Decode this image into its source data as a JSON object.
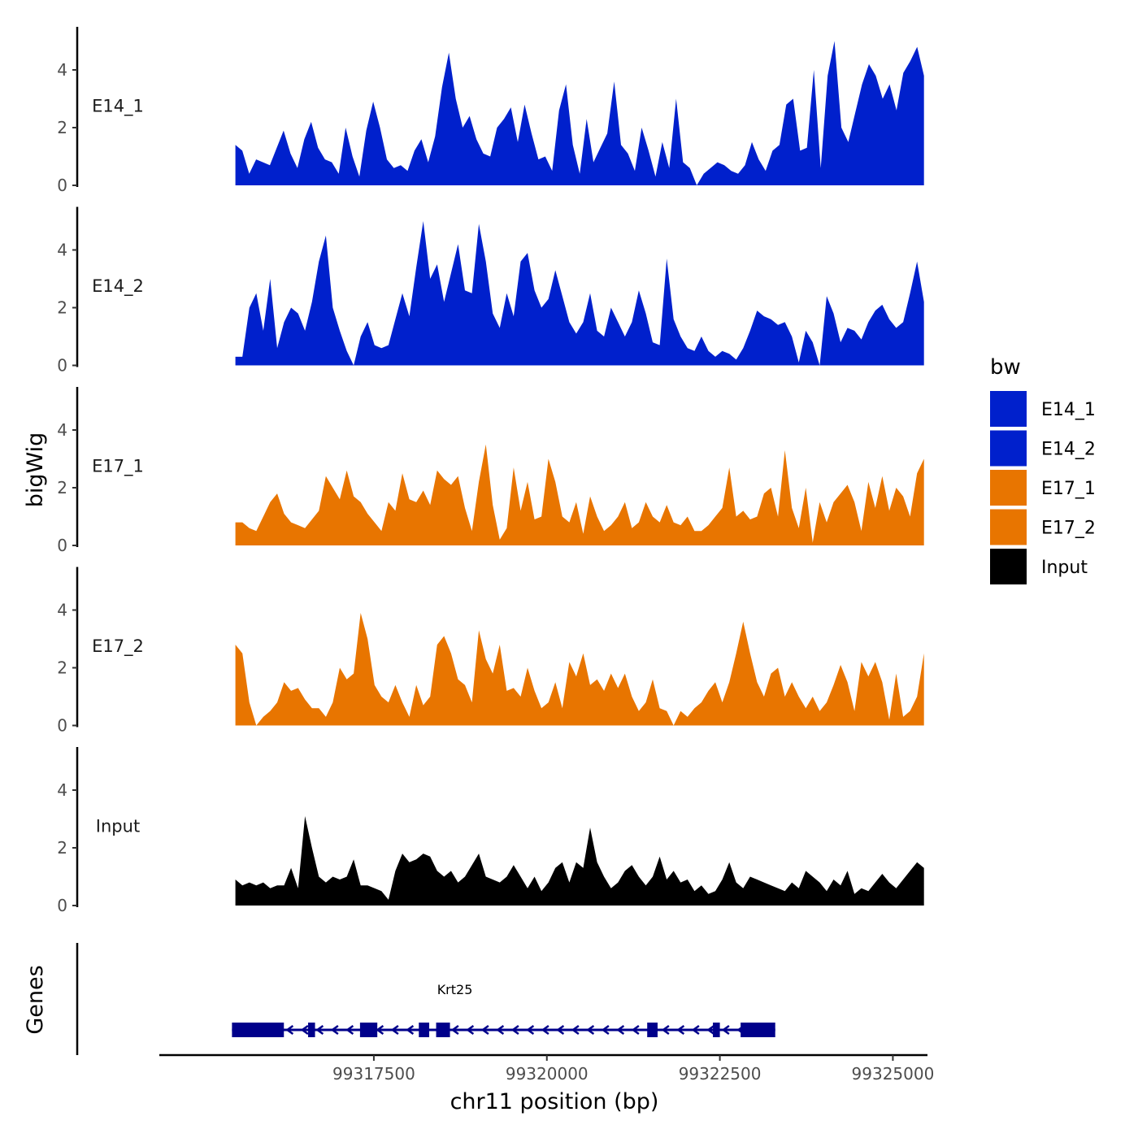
{
  "chart_data": {
    "type": "area",
    "ylabel": "bigWig",
    "xlabel": "chr11 position (bp)",
    "xlim": [
      99314400,
      99325500
    ],
    "ylim": [
      0,
      5.5
    ],
    "y_ticks": [
      0,
      2,
      4
    ],
    "y_tick_labels": [
      "0",
      "2",
      "4"
    ],
    "x_ticks": [
      99317500,
      99320000,
      99322500,
      99325000
    ],
    "x_tick_labels": [
      "99317500",
      "99320000",
      "99322500",
      "99325000"
    ],
    "genes_track_label": "Genes",
    "legend": {
      "title": "bw",
      "position": "right",
      "entries": [
        {
          "label": "E14_1",
          "color": "#0020CC"
        },
        {
          "label": "E14_2",
          "color": "#0020CC"
        },
        {
          "label": "E17_1",
          "color": "#E87500"
        },
        {
          "label": "E17_2",
          "color": "#E87500"
        },
        {
          "label": "Input",
          "color": "#000000"
        }
      ]
    },
    "tracks": [
      {
        "name": "E14_1",
        "color": "#0020CC",
        "x_start": 99315500,
        "x_end": 99325450,
        "values": [
          1.4,
          1.2,
          0.4,
          0.9,
          0.8,
          0.7,
          1.3,
          1.9,
          1.1,
          0.6,
          1.6,
          2.2,
          1.3,
          0.9,
          0.8,
          0.4,
          2.0,
          1.0,
          0.3,
          1.9,
          2.9,
          2.0,
          0.9,
          0.6,
          0.7,
          0.5,
          1.2,
          1.6,
          0.8,
          1.7,
          3.4,
          4.6,
          3.0,
          2.0,
          2.4,
          1.6,
          1.1,
          1.0,
          2.0,
          2.3,
          2.7,
          1.5,
          2.8,
          1.8,
          0.9,
          1.0,
          0.5,
          2.6,
          3.5,
          1.4,
          0.4,
          2.3,
          0.8,
          1.3,
          1.8,
          3.6,
          1.4,
          1.1,
          0.5,
          2.0,
          1.2,
          0.3,
          1.5,
          0.6,
          3.0,
          0.8,
          0.6,
          0.0,
          0.4,
          0.6,
          0.8,
          0.7,
          0.5,
          0.4,
          0.7,
          1.5,
          0.9,
          0.5,
          1.2,
          1.4,
          2.8,
          3.0,
          1.2,
          1.3,
          4.0,
          0.6,
          3.8,
          5.0,
          2.0,
          1.5,
          2.5,
          3.5,
          4.2,
          3.8,
          3.0,
          3.5,
          2.6,
          3.9,
          4.3,
          4.8,
          3.8
        ]
      },
      {
        "name": "E14_2",
        "color": "#0020CC",
        "x_start": 99315500,
        "x_end": 99325450,
        "values": [
          0.3,
          0.3,
          2.0,
          2.5,
          1.2,
          3.0,
          0.6,
          1.5,
          2.0,
          1.8,
          1.2,
          2.2,
          3.6,
          4.5,
          2.0,
          1.2,
          0.5,
          0.0,
          1.0,
          1.5,
          0.7,
          0.6,
          0.7,
          1.6,
          2.5,
          1.7,
          3.4,
          5.0,
          3.0,
          3.5,
          2.2,
          3.2,
          4.2,
          2.6,
          2.5,
          4.9,
          3.6,
          1.8,
          1.3,
          2.5,
          1.7,
          3.6,
          3.9,
          2.6,
          2.0,
          2.3,
          3.3,
          2.4,
          1.5,
          1.1,
          1.5,
          2.5,
          1.2,
          1.0,
          2.0,
          1.5,
          1.0,
          1.5,
          2.6,
          1.8,
          0.8,
          0.7,
          3.7,
          1.6,
          1.0,
          0.6,
          0.5,
          1.0,
          0.5,
          0.3,
          0.5,
          0.4,
          0.2,
          0.6,
          1.2,
          1.9,
          1.7,
          1.6,
          1.4,
          1.5,
          1.0,
          0.1,
          1.2,
          0.8,
          0.0,
          2.4,
          1.8,
          0.8,
          1.3,
          1.2,
          0.9,
          1.5,
          1.9,
          2.1,
          1.6,
          1.3,
          1.5,
          2.5,
          3.6,
          2.2
        ]
      },
      {
        "name": "E17_1",
        "color": "#E87500",
        "x_start": 99315500,
        "x_end": 99325450,
        "values": [
          0.8,
          0.8,
          0.6,
          0.5,
          1.0,
          1.5,
          1.8,
          1.1,
          0.8,
          0.7,
          0.6,
          0.9,
          1.2,
          2.4,
          2.0,
          1.6,
          2.6,
          1.7,
          1.5,
          1.1,
          0.8,
          0.5,
          1.5,
          1.2,
          2.5,
          1.6,
          1.5,
          1.9,
          1.4,
          2.6,
          2.3,
          2.1,
          2.4,
          1.3,
          0.5,
          2.2,
          3.5,
          1.4,
          0.2,
          0.6,
          2.7,
          1.2,
          2.2,
          0.9,
          1.0,
          3.0,
          2.2,
          1.0,
          0.8,
          1.5,
          0.4,
          1.7,
          1.0,
          0.5,
          0.7,
          1.0,
          1.5,
          0.6,
          0.8,
          1.5,
          1.0,
          0.8,
          1.4,
          0.8,
          0.7,
          1.0,
          0.5,
          0.5,
          0.7,
          1.0,
          1.3,
          2.7,
          1.0,
          1.2,
          0.9,
          1.0,
          1.8,
          2.0,
          1.0,
          3.3,
          1.3,
          0.6,
          2.0,
          0.1,
          1.5,
          0.8,
          1.5,
          1.8,
          2.1,
          1.5,
          0.5,
          2.2,
          1.3,
          2.4,
          1.2,
          2.0,
          1.7,
          1.0,
          2.5,
          3.0
        ]
      },
      {
        "name": "E17_2",
        "color": "#E87500",
        "x_start": 99315500,
        "x_end": 99325450,
        "values": [
          2.8,
          2.5,
          0.8,
          0.0,
          0.3,
          0.5,
          0.8,
          1.5,
          1.2,
          1.3,
          0.9,
          0.6,
          0.6,
          0.3,
          0.8,
          2.0,
          1.6,
          1.8,
          3.9,
          3.0,
          1.4,
          1.0,
          0.8,
          1.4,
          0.8,
          0.3,
          1.4,
          0.7,
          1.0,
          2.8,
          3.1,
          2.5,
          1.6,
          1.4,
          0.8,
          3.3,
          2.3,
          1.8,
          2.8,
          1.2,
          1.3,
          1.0,
          2.0,
          1.2,
          0.6,
          0.8,
          1.5,
          0.6,
          2.2,
          1.7,
          2.5,
          1.4,
          1.6,
          1.2,
          1.8,
          1.3,
          1.8,
          1.0,
          0.5,
          0.8,
          1.6,
          0.6,
          0.5,
          0.0,
          0.5,
          0.3,
          0.6,
          0.8,
          1.2,
          1.5,
          0.8,
          1.5,
          2.5,
          3.6,
          2.5,
          1.5,
          1.0,
          1.8,
          2.0,
          1.0,
          1.5,
          1.0,
          0.6,
          1.0,
          0.5,
          0.8,
          1.4,
          2.1,
          1.5,
          0.5,
          2.2,
          1.7,
          2.2,
          1.5,
          0.2,
          1.8,
          0.3,
          0.5,
          1.0,
          2.5
        ]
      },
      {
        "name": "Input",
        "color": "#000000",
        "x_start": 99315500,
        "x_end": 99325450,
        "values": [
          0.9,
          0.7,
          0.8,
          0.7,
          0.8,
          0.6,
          0.7,
          0.7,
          1.3,
          0.6,
          3.1,
          2.0,
          1.0,
          0.8,
          1.0,
          0.9,
          1.0,
          1.6,
          0.7,
          0.7,
          0.6,
          0.5,
          0.2,
          1.2,
          1.8,
          1.5,
          1.6,
          1.8,
          1.7,
          1.2,
          1.0,
          1.2,
          0.8,
          1.0,
          1.4,
          1.8,
          1.0,
          0.9,
          0.8,
          1.0,
          1.4,
          1.0,
          0.6,
          1.0,
          0.5,
          0.8,
          1.3,
          1.5,
          0.8,
          1.5,
          1.3,
          2.7,
          1.5,
          1.0,
          0.6,
          0.8,
          1.2,
          1.4,
          1.0,
          0.7,
          1.0,
          1.7,
          0.9,
          1.2,
          0.8,
          0.9,
          0.5,
          0.7,
          0.4,
          0.5,
          0.9,
          1.5,
          0.8,
          0.6,
          1.0,
          0.9,
          0.8,
          0.7,
          0.6,
          0.5,
          0.8,
          0.6,
          1.2,
          1.0,
          0.8,
          0.5,
          0.9,
          0.7,
          1.2,
          0.4,
          0.6,
          0.5,
          0.8,
          1.1,
          0.8,
          0.6,
          0.9,
          1.2,
          1.5,
          1.3
        ]
      }
    ],
    "genes": [
      {
        "name": "Krt25",
        "strand": "-",
        "x_start": 99315450,
        "x_end": 99323300,
        "exons": [
          [
            99315450,
            99316200
          ],
          [
            99316550,
            99316650
          ],
          [
            99317300,
            99317550
          ],
          [
            99318150,
            99318300
          ],
          [
            99318400,
            99318600
          ],
          [
            99321450,
            99321600
          ],
          [
            99322400,
            99322500
          ],
          [
            99322800,
            99323300
          ]
        ]
      }
    ]
  }
}
